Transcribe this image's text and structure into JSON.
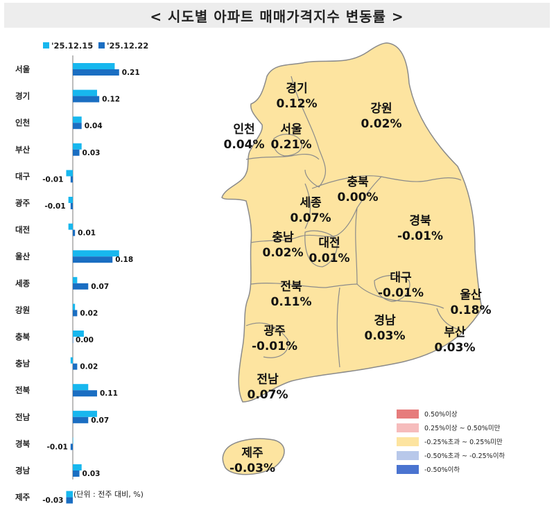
{
  "title": "< 시도별 아파트 매매가격지수 변동률 >",
  "unit_note": "(단위 : 전주 대비, %)",
  "colors": {
    "series1": "#17b7ee",
    "series2": "#1a6ec2",
    "map_fill": "#fde4a0",
    "map_stroke": "#8a8a8a"
  },
  "chart_data": {
    "type": "bar",
    "orientation": "horizontal",
    "categories": [
      "서울",
      "경기",
      "인천",
      "부산",
      "대구",
      "광주",
      "대전",
      "울산",
      "세종",
      "강원",
      "충북",
      "충남",
      "전북",
      "전남",
      "경북",
      "경남",
      "제주"
    ],
    "series": [
      {
        "name": "'25.12.15",
        "values": [
          0.19,
          0.11,
          0.04,
          0.04,
          -0.03,
          -0.02,
          -0.02,
          0.21,
          0.02,
          0.01,
          0.05,
          -0.01,
          0.07,
          0.11,
          0.0,
          0.04,
          -0.03
        ]
      },
      {
        "name": "'25.12.22",
        "values": [
          0.21,
          0.12,
          0.04,
          0.03,
          -0.01,
          -0.01,
          0.01,
          0.18,
          0.07,
          0.02,
          0.0,
          0.02,
          0.11,
          0.07,
          -0.01,
          0.03,
          -0.03
        ]
      }
    ],
    "value_labels": [
      "0.21",
      "0.12",
      "0.04",
      "0.03",
      "-0.01",
      "-0.01",
      "0.01",
      "0.18",
      "0.07",
      "0.02",
      "0.00",
      "0.02",
      "0.11",
      "0.07",
      "-0.01",
      "0.03",
      "-0.03"
    ],
    "legend_position": "top"
  },
  "map": {
    "regions": [
      {
        "name": "경기",
        "value": "0.12%"
      },
      {
        "name": "강원",
        "value": "0.02%"
      },
      {
        "name": "인천",
        "value": "0.04%"
      },
      {
        "name": "서울",
        "value": "0.21%"
      },
      {
        "name": "충북",
        "value": "0.00%"
      },
      {
        "name": "세종",
        "value": "0.07%"
      },
      {
        "name": "경북",
        "value": "-0.01%"
      },
      {
        "name": "충남",
        "value": "0.02%"
      },
      {
        "name": "대전",
        "value": "0.01%"
      },
      {
        "name": "대구",
        "value": "-0.01%"
      },
      {
        "name": "울산",
        "value": "0.18%"
      },
      {
        "name": "전북",
        "value": "0.11%"
      },
      {
        "name": "경남",
        "value": "0.03%"
      },
      {
        "name": "광주",
        "value": "-0.01%"
      },
      {
        "name": "부산",
        "value": "0.03%"
      },
      {
        "name": "전남",
        "value": "0.07%"
      },
      {
        "name": "제주",
        "value": "-0.03%"
      }
    ]
  },
  "legend": [
    {
      "label": "0.50%이상",
      "color": "#e67c7c"
    },
    {
      "label": "0.25%이상 ~ 0.50%미만",
      "color": "#f6bcbc"
    },
    {
      "label": "-0.25%초과 ~ 0.25%미만",
      "color": "#fde4a0"
    },
    {
      "label": "-0.50%초과 ~ -0.25%이하",
      "color": "#b8c8ea"
    },
    {
      "label": "-0.50%이하",
      "color": "#4a74d0"
    }
  ]
}
